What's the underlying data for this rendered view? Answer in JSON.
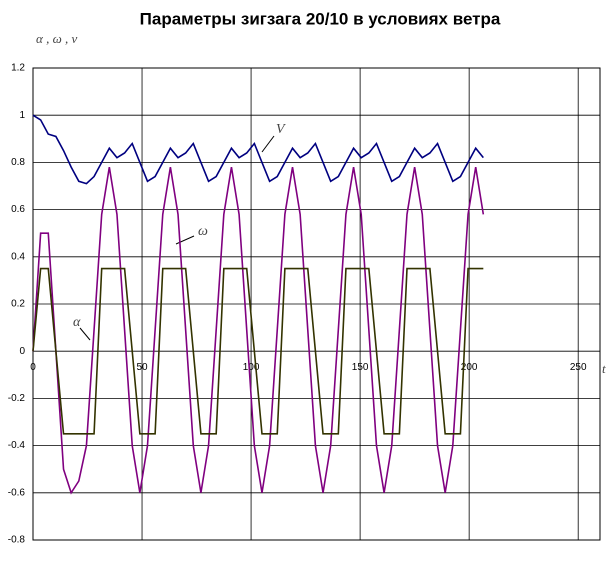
{
  "chart_data": {
    "type": "line",
    "title": "Параметры зигзага 20/10 в условиях ветра",
    "y_label": "α , ω , v",
    "x_label": "t",
    "x": [
      0,
      3.5,
      7,
      10.5,
      14,
      17.5,
      21,
      24.5,
      28,
      31.5,
      35,
      38.5,
      42,
      45.5,
      49,
      52.5,
      56,
      59.5,
      63,
      66.5,
      70,
      73.5,
      77,
      80.5,
      84,
      87.5,
      91,
      94.5,
      98,
      101.5,
      105,
      108.5,
      112,
      115.5,
      119,
      122.5,
      126,
      129.5,
      133,
      136.5,
      140,
      143.5,
      147,
      150.5,
      154,
      157.5,
      161,
      164.5,
      168,
      171.5,
      175,
      178.5,
      182,
      185.5,
      189,
      192.5,
      196,
      199.5,
      203,
      206.5
    ],
    "series": [
      {
        "name": "V",
        "color": "#000080",
        "values": [
          1,
          0.98,
          0.92,
          0.91,
          0.85,
          0.78,
          0.72,
          0.71,
          0.74,
          0.8,
          0.86,
          0.82,
          0.84,
          0.88,
          0.8,
          0.72,
          0.74,
          0.8,
          0.86,
          0.82,
          0.84,
          0.88,
          0.8,
          0.72,
          0.74,
          0.8,
          0.86,
          0.82,
          0.84,
          0.88,
          0.8,
          0.72,
          0.74,
          0.8,
          0.86,
          0.82,
          0.84,
          0.88,
          0.8,
          0.72,
          0.74,
          0.8,
          0.86,
          0.82,
          0.84,
          0.88,
          0.8,
          0.72,
          0.74,
          0.8,
          0.86,
          0.82,
          0.84,
          0.88,
          0.8,
          0.72,
          0.74,
          0.8,
          0.86,
          0.82
        ]
      },
      {
        "name": "ω",
        "color": "#800080",
        "values": [
          0,
          0.5,
          0.5,
          0,
          -0.5,
          -0.6,
          -0.55,
          -0.4,
          0.09,
          0.58,
          0.78,
          0.58,
          0.09,
          -0.4,
          -0.6,
          -0.4,
          0.09,
          0.58,
          0.78,
          0.58,
          0.09,
          -0.4,
          -0.6,
          -0.4,
          0.09,
          0.58,
          0.78,
          0.58,
          0.09,
          -0.4,
          -0.6,
          -0.4,
          0.09,
          0.58,
          0.78,
          0.58,
          0.09,
          -0.4,
          -0.6,
          -0.4,
          0.09,
          0.58,
          0.78,
          0.58,
          0.09,
          -0.4,
          -0.6,
          -0.4,
          0.09,
          0.58,
          0.78,
          0.58,
          0.09,
          -0.4,
          -0.6,
          -0.4,
          0.09,
          0.58,
          0.78,
          0.58
        ]
      },
      {
        "name": "α",
        "color": "#333300",
        "values": [
          0,
          0.35,
          0.35,
          0,
          -0.35,
          -0.35,
          -0.35,
          -0.35,
          -0.35,
          0.35,
          0.35,
          0.35,
          0.35,
          0,
          -0.35,
          -0.35,
          -0.35,
          0.35,
          0.35,
          0.35,
          0.35,
          0,
          -0.35,
          -0.35,
          -0.35,
          0.35,
          0.35,
          0.35,
          0.35,
          0,
          -0.35,
          -0.35,
          -0.35,
          0.35,
          0.35,
          0.35,
          0.35,
          0,
          -0.35,
          -0.35,
          -0.35,
          0.35,
          0.35,
          0.35,
          0.35,
          0,
          -0.35,
          -0.35,
          -0.35,
          0.35,
          0.35,
          0.35,
          0.35,
          0,
          -0.35,
          -0.35,
          -0.35,
          0.35,
          0.35,
          0.35
        ]
      }
    ],
    "xlim": [
      0,
      260
    ],
    "xticks": [
      0,
      50,
      100,
      150,
      200,
      250
    ],
    "ylim": [
      -0.8,
      1.2
    ],
    "yticks": [
      1.2,
      1,
      0.8,
      0.6,
      0.4,
      0.2,
      0,
      -0.2,
      -0.4,
      -0.6,
      -0.8
    ],
    "grid": true
  }
}
